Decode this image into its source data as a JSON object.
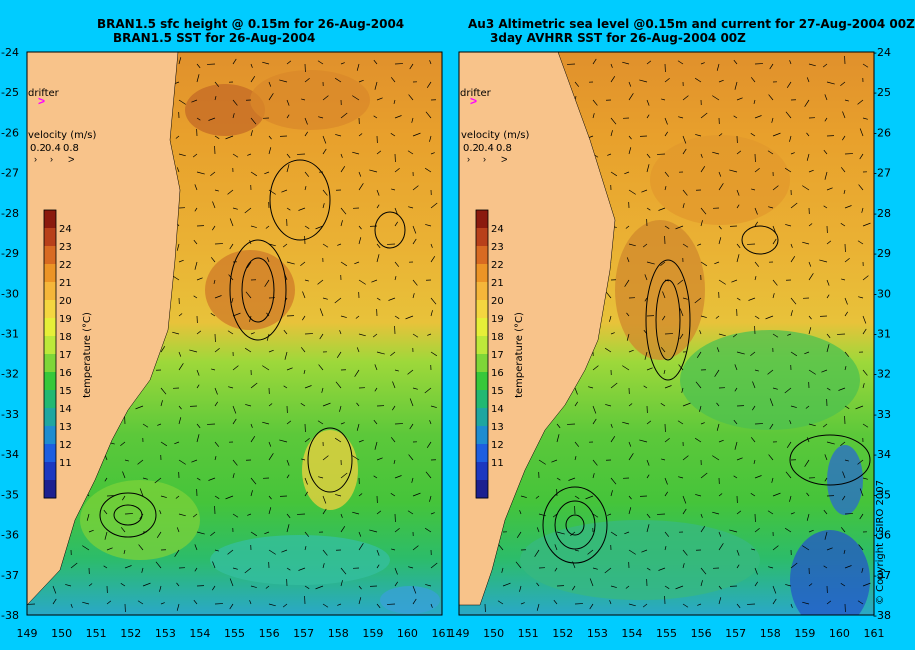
{
  "left_panel": {
    "title_line1": "BRAN1.5 sfc height @ 0.15m for 26-Aug-2004",
    "title_line2": "BRAN1.5 SST for 26-Aug-2004"
  },
  "right_panel": {
    "title_line1": "Au3 Altimetric sea level  @0.15m and current for 27-Aug-2004 00Z",
    "title_line2": "3day AVHRR SST for 26-Aug-2004 00Z"
  },
  "drifter_label": "drifter",
  "velocity_legend": {
    "title": "velocity (m/s)",
    "values": [
      "0.2",
      "0.4",
      "0.8"
    ]
  },
  "colorbar": {
    "label": "temperature (°C)",
    "ticks": [
      "24",
      "23",
      "22",
      "21",
      "20",
      "19",
      "18",
      "17",
      "16",
      "15",
      "14",
      "13",
      "12",
      "11"
    ],
    "colors": [
      "#8b1a0e",
      "#b8401a",
      "#d86a22",
      "#ec9426",
      "#f5b63a",
      "#f4d640",
      "#e6ef38",
      "#bde83a",
      "#7ed638",
      "#37c83a",
      "#22b872",
      "#1fa6a0",
      "#1e8cd0",
      "#1d5ee0",
      "#1c38c0",
      "#1c2090"
    ]
  },
  "x_ticks": [
    "149",
    "150",
    "151",
    "152",
    "153",
    "154",
    "155",
    "156",
    "157",
    "158",
    "159",
    "160",
    "161"
  ],
  "y_ticks": [
    "-24",
    "-25",
    "-26",
    "-27",
    "-28",
    "-29",
    "-30",
    "-31",
    "-32",
    "-33",
    "-34",
    "-35",
    "-36",
    "-37",
    "-38"
  ],
  "copyright": "© Copyright CSIRO 2007",
  "colors": {
    "background": "#00ccff",
    "land": "#f8c38a",
    "drifter_marker": "#ff00ff"
  }
}
